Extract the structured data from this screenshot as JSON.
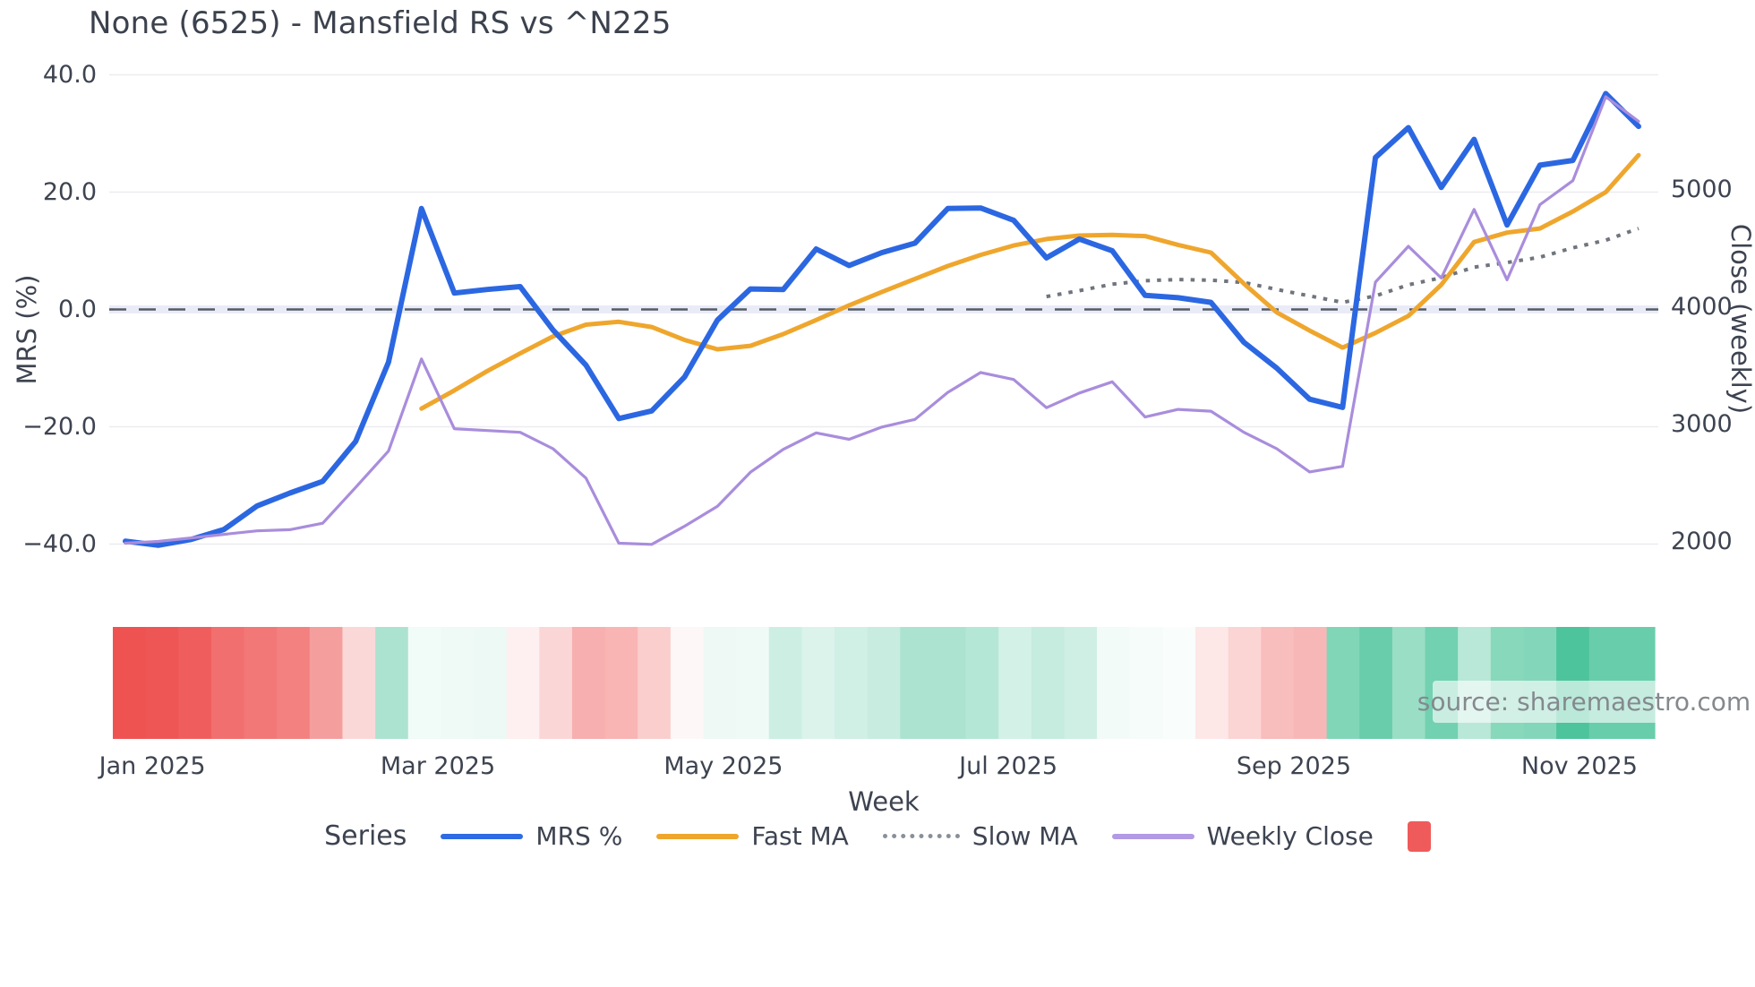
{
  "page": {
    "title": "None (6525) - Mansfield RS vs ^N225"
  },
  "chart_data": {
    "type": "line",
    "title": "None (6525) - Mansfield RS vs ^N225",
    "xlabel": "Week",
    "ylabel_left": "MRS (%)",
    "ylabel_right": "Close (weekly)",
    "weeks": 47,
    "x_tick_labels": [
      "Jan 2025",
      "Mar 2025",
      "May 2025",
      "Jul 2025",
      "Sep 2025",
      "Nov 2025"
    ],
    "x_tick_week_index": [
      0.82,
      9.5,
      18.18,
      26.84,
      35.52,
      44.2
    ],
    "left_axis": {
      "ticks": [
        40,
        20,
        0,
        -20,
        -40
      ],
      "tick_labels": [
        "40.0",
        "20.0",
        "0.0",
        "−20.0",
        "−40.0"
      ],
      "range": [
        -44,
        42
      ],
      "zero_dashed_line": true
    },
    "right_axis": {
      "ticks": [
        5000,
        4000,
        3000,
        2000
      ],
      "tick_labels": [
        "5000",
        "4000",
        "3000",
        "2000"
      ]
    },
    "series": [
      {
        "name": "MRS %",
        "axis": "left",
        "color": "#2c67e2",
        "width": 6,
        "style": "solid",
        "start_index": 0,
        "values": [
          -39.5,
          -40.2,
          -39.2,
          -37.5,
          -33.5,
          -31.3,
          -29.3,
          -22.5,
          -9.0,
          17.2,
          2.8,
          3.4,
          3.9,
          -3.5,
          -9.5,
          -18.6,
          -17.3,
          -11.5,
          -1.8,
          3.5,
          3.4,
          10.3,
          7.5,
          9.7,
          11.3,
          17.2,
          17.3,
          15.2,
          8.8,
          12.0,
          10.0,
          2.4,
          2.0,
          1.2,
          -5.6,
          -10.0,
          -15.3,
          -16.7,
          25.9,
          31.0,
          20.8,
          29.0,
          14.4,
          24.6,
          25.4,
          36.8,
          31.2
        ]
      },
      {
        "name": "Fast MA",
        "axis": "left",
        "color": "#efa62d",
        "width": 5,
        "style": "solid",
        "start_index": 9,
        "values": [
          -16.9,
          -13.8,
          -10.5,
          -7.5,
          -4.6,
          -2.6,
          -2.1,
          -3.0,
          -5.2,
          -6.8,
          -6.2,
          -4.2,
          -1.8,
          0.7,
          3.0,
          5.2,
          7.4,
          9.3,
          10.9,
          12.0,
          12.6,
          12.7,
          12.5,
          11.0,
          9.7,
          4.4,
          -0.5,
          -3.6,
          -6.5,
          -4.0,
          -1.1,
          4.2,
          11.5,
          13.1,
          13.8,
          16.7,
          20.0,
          26.3
        ]
      },
      {
        "name": "Slow MA",
        "axis": "left",
        "color": "#70757d",
        "width": 4,
        "style": "dotted",
        "start_index": 28,
        "values": [
          2.2,
          3.2,
          4.3,
          4.9,
          5.1,
          5.0,
          4.6,
          3.4,
          2.3,
          1.2,
          2.3,
          4.2,
          5.4,
          7.2,
          8.0,
          8.9,
          10.5,
          11.8,
          13.8
        ]
      },
      {
        "name": "Weekly Close",
        "axis": "right",
        "color": "#a98ddc",
        "width": 3.2,
        "style": "solid",
        "start_index": 0,
        "values": [
          1985,
          2000,
          2030,
          2060,
          2090,
          2100,
          2155,
          2460,
          2770,
          3555,
          2960,
          2945,
          2930,
          2790,
          2540,
          1985,
          1975,
          2130,
          2300,
          2590,
          2785,
          2925,
          2870,
          2975,
          3040,
          3270,
          3440,
          3380,
          3140,
          3265,
          3360,
          3060,
          3125,
          3110,
          2930,
          2790,
          2592,
          2640,
          4210,
          4515,
          4245,
          4830,
          4230,
          4870,
          5075,
          5790,
          5580
        ]
      }
    ],
    "heatmap": {
      "description": "weekly MRS strength strip",
      "values": [
        -40.2,
        -39.2,
        -37.5,
        -33.5,
        -31.3,
        -29.3,
        -22.5,
        -9.0,
        17.2,
        2.8,
        3.4,
        3.9,
        -3.5,
        -9.5,
        -18.6,
        -17.3,
        -11.5,
        -1.8,
        3.5,
        3.4,
        10.3,
        7.5,
        9.7,
        11.3,
        17.2,
        17.3,
        15.2,
        8.8,
        12.0,
        10.0,
        2.4,
        2.0,
        1.2,
        -5.6,
        -10.0,
        -15.3,
        -16.7,
        25.9,
        31.0,
        20.8,
        29.0,
        14.4,
        24.6,
        25.4,
        36.8,
        31.2,
        31.2
      ],
      "negative_color": "#ee5352",
      "positive_color": "#3dbf92",
      "scale_max": 40
    },
    "grid": {
      "color": "#ececf1",
      "zero_band_color": "#e9ecf7",
      "zero_dash_color": "#565c66"
    }
  },
  "legend": {
    "title": "Series",
    "items": [
      {
        "label": "MRS %",
        "swatch": "line",
        "color": "#2f6be4"
      },
      {
        "label": "Fast MA",
        "swatch": "line",
        "color": "#efa62d"
      },
      {
        "label": "Slow MA",
        "swatch": "dotted",
        "color": "#8a9099"
      },
      {
        "label": "Weekly Close",
        "swatch": "line",
        "color": "#b29ae4"
      },
      {
        "label": "",
        "swatch": "square",
        "color": "#ef5b5b"
      }
    ]
  },
  "source_note": "source: sharemaestro.com"
}
